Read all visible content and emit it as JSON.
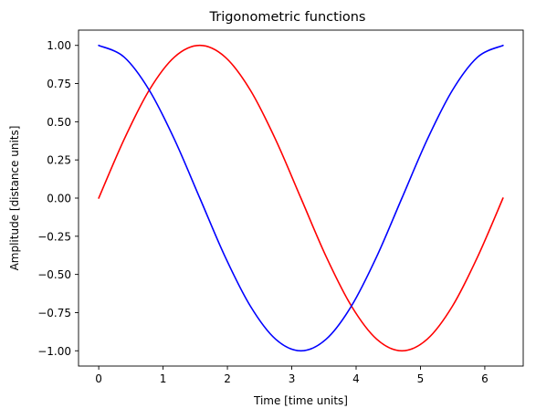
{
  "chart_data": {
    "type": "line",
    "title": "Trigonometric functions",
    "xlabel": "Time [time units]",
    "ylabel": "Amplitude [distance units]",
    "xlim": [
      -0.314,
      6.597
    ],
    "ylim": [
      -1.1,
      1.1
    ],
    "x_ticks": [
      0,
      1,
      2,
      3,
      4,
      5,
      6
    ],
    "x_tick_labels": [
      "0",
      "1",
      "2",
      "3",
      "4",
      "5",
      "6"
    ],
    "y_ticks": [
      1.0,
      0.75,
      0.5,
      0.25,
      0.0,
      -0.25,
      -0.5,
      -0.75,
      -1.0
    ],
    "y_tick_labels": [
      "1.00",
      "0.75",
      "0.50",
      "0.25",
      "0.00",
      "−0.25",
      "−0.50",
      "−0.75",
      "−1.00"
    ],
    "grid": false,
    "legend": "none",
    "series": [
      {
        "color": "#ff0000",
        "x": [
          0,
          0.393,
          0.785,
          1.178,
          1.571,
          1.963,
          2.356,
          2.749,
          3.142,
          3.534,
          3.927,
          4.32,
          4.712,
          5.105,
          5.498,
          5.89,
          6.283
        ],
        "y": [
          0.0,
          0.383,
          0.707,
          0.924,
          1.0,
          0.924,
          0.707,
          0.383,
          0.0,
          -0.383,
          -0.707,
          -0.924,
          -1.0,
          -0.924,
          -0.707,
          -0.383,
          0.0
        ]
      },
      {
        "color": "#0000ff",
        "x": [
          0,
          0.393,
          0.785,
          1.178,
          1.571,
          1.963,
          2.356,
          2.749,
          3.142,
          3.534,
          3.927,
          4.32,
          4.712,
          5.105,
          5.498,
          5.89,
          6.283
        ],
        "y": [
          1.0,
          0.924,
          0.707,
          0.383,
          0.0,
          -0.383,
          -0.707,
          -0.924,
          -1.0,
          -0.924,
          -0.707,
          -0.383,
          0.0,
          0.383,
          0.707,
          0.924,
          1.0
        ]
      }
    ]
  }
}
